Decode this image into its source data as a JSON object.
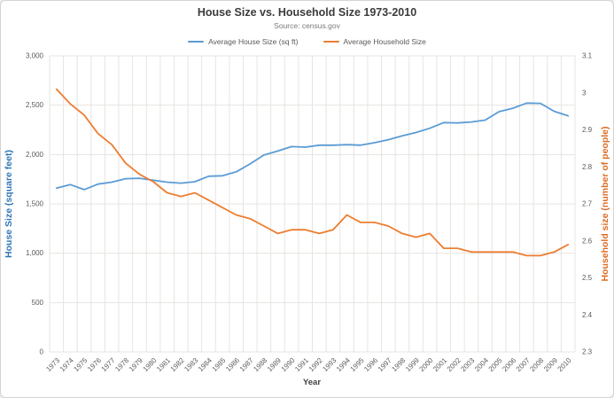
{
  "chart": {
    "title": "House Size vs. Household Size 1973-2010",
    "subtitle": "Source: census.gov",
    "legend": [
      {
        "label": "Average House Size (sq ft)",
        "color": "#5b9bd5"
      },
      {
        "label": "Average Household Size",
        "color": "#ed7d31"
      }
    ],
    "y_left_title": "House Size (square feet)",
    "y_right_title": "Household size (number of people)",
    "x_title": "Year"
  },
  "chart_data": {
    "type": "line",
    "title": "House Size vs. Household Size 1973-2010",
    "subtitle": "Source: census.gov",
    "xlabel": "Year",
    "grid": true,
    "legend_position": "top",
    "x": [
      "1973",
      "1974",
      "1975",
      "1976",
      "1977",
      "1978",
      "1979",
      "1980",
      "1981",
      "1982",
      "1983",
      "1984",
      "1985",
      "1986",
      "1987",
      "1988",
      "1989",
      "1990",
      "1991",
      "1992",
      "1993",
      "1994",
      "1995",
      "1996",
      "1997",
      "1998",
      "1999",
      "2000",
      "2001",
      "2002",
      "2003",
      "2004",
      "2005",
      "2006",
      "2007",
      "2008",
      "2009",
      "2010"
    ],
    "series": [
      {
        "name": "Average House Size (sq ft)",
        "axis": "left",
        "color": "#5b9bd5",
        "values": [
          1660,
          1695,
          1645,
          1700,
          1720,
          1755,
          1760,
          1740,
          1720,
          1710,
          1725,
          1780,
          1785,
          1825,
          1905,
          1995,
          2035,
          2080,
          2075,
          2095,
          2095,
          2100,
          2095,
          2120,
          2150,
          2190,
          2223,
          2266,
          2324,
          2320,
          2330,
          2349,
          2434,
          2469,
          2521,
          2519,
          2438,
          2392
        ]
      },
      {
        "name": "Average Household Size",
        "axis": "right",
        "color": "#ed7d31",
        "values": [
          3.01,
          2.97,
          2.94,
          2.89,
          2.86,
          2.81,
          2.78,
          2.76,
          2.73,
          2.72,
          2.73,
          2.71,
          2.69,
          2.67,
          2.66,
          2.64,
          2.62,
          2.63,
          2.63,
          2.62,
          2.63,
          2.67,
          2.65,
          2.65,
          2.64,
          2.62,
          2.61,
          2.62,
          2.58,
          2.58,
          2.57,
          2.57,
          2.57,
          2.57,
          2.56,
          2.56,
          2.57,
          2.59
        ]
      }
    ],
    "left_axis": {
      "label": "House Size (square feet)",
      "min": 0,
      "max": 3000,
      "ticks": [
        "0",
        "500",
        "1,000",
        "1,500",
        "2,000",
        "2,500",
        "3,000"
      ]
    },
    "right_axis": {
      "label": "Household size (number of people)",
      "min": 2.3,
      "max": 3.1,
      "ticks": [
        "2.3",
        "2.4",
        "2.5",
        "2.6",
        "2.7",
        "2.8",
        "2.9",
        "3",
        "3.1"
      ]
    },
    "colors": {
      "house_line": "#5b9bd5",
      "household_line": "#ed7d31",
      "gridline": "#e7e4e0",
      "tick_text": "#595959",
      "left_title": "#2e75b6",
      "right_title": "#dd6a20"
    }
  }
}
